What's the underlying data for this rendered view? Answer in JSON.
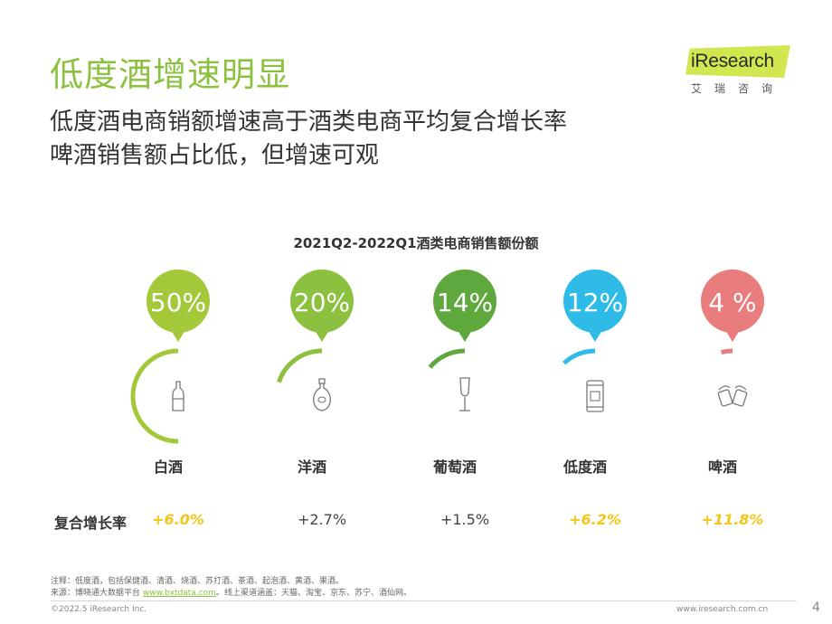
{
  "page": {
    "title": "低度酒增速明显",
    "subtitle_lines": [
      "低度酒电商销额增速高于酒类电商平均复合增长率",
      "啤酒销售额占比低，但增速可观"
    ],
    "page_number": "4"
  },
  "logo": {
    "brand": "iResearch",
    "brand_cn": "艾瑞咨询"
  },
  "chart_data": {
    "type": "pie",
    "title": "2021Q2-2022Q1酒类电商销售额份额",
    "categories": [
      "白酒",
      "洋酒",
      "葡萄酒",
      "低度酒",
      "啤酒"
    ],
    "value_labels": [
      "50%",
      "20%",
      "14%",
      "12%",
      "4 %"
    ],
    "values": [
      50,
      20,
      14,
      12,
      4
    ],
    "colors": [
      "#a3c93a",
      "#8cc13f",
      "#5ea83d",
      "#2ebbe8",
      "#e97d7d"
    ],
    "icons": [
      "baijiu-bottle-icon",
      "liquor-decanter-icon",
      "wine-glass-icon",
      "canned-drink-icon",
      "beer-mugs-icon"
    ],
    "growth_label": "复合增长率",
    "growth_rates": [
      "+6.0%",
      "+2.7%",
      "+1.5%",
      "+6.2%",
      "+11.8%"
    ],
    "growth_highlighted": [
      true,
      false,
      false,
      true,
      true
    ],
    "highlight_color": "#f5c518"
  },
  "footer": {
    "note_prefix": "注释：",
    "note": "低度酒，包括保健酒、清酒、烧酒、苏打酒、茶酒、起泡酒、黄酒、果酒。",
    "source_prefix": "来源：博晓通大数据平台",
    "source_link": "www.bxtdata.com",
    "source_suffix": "。线上渠道涵盖：天猫、淘宝、京东、苏宁、酒仙网。",
    "copyright": "©2022.5 iResearch Inc.",
    "website": "www.iresearch.com.cn"
  }
}
